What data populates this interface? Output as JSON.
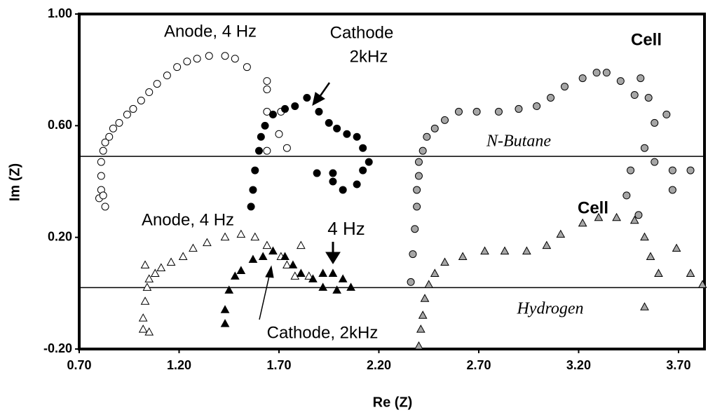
{
  "chart_data": {
    "type": "scatter",
    "x_label": "Re (Z)",
    "y_label": "Im (Z)",
    "xlim": [
      0.7,
      3.83
    ],
    "ylim": [
      -0.2,
      1.0
    ],
    "xticks": [
      {
        "value": 0.7,
        "label": "0.70"
      },
      {
        "value": 1.2,
        "label": "1.20"
      },
      {
        "value": 1.7,
        "label": "1.70"
      },
      {
        "value": 2.2,
        "label": "2.20"
      },
      {
        "value": 2.7,
        "label": "2.70"
      },
      {
        "value": 3.2,
        "label": "3.20"
      },
      {
        "value": 3.7,
        "label": "3.70"
      }
    ],
    "yticks": [
      {
        "value": -0.2,
        "label": "-0.20"
      },
      {
        "value": 0.2,
        "label": "0.20"
      },
      {
        "value": 0.6,
        "label": "0.60"
      },
      {
        "value": 1.0,
        "label": "1.00"
      }
    ],
    "hlines": [
      0.49,
      0.02
    ],
    "annotations": [
      "Anode, 4 Hz",
      "Cathode",
      "2kHz",
      "Cell",
      "N-Butane",
      "Anode, 4 Hz",
      "Cell",
      "4 Hz",
      "Hydrogen",
      "Cathode, 2kHz"
    ],
    "series": [
      {
        "marker": "circle",
        "color": "#ffffff",
        "x": [
          0.8,
          0.81,
          0.82,
          0.83,
          0.81,
          0.81,
          0.82,
          0.83,
          0.85,
          0.87,
          0.9,
          0.94,
          0.97,
          1.01,
          1.05,
          1.09,
          1.14,
          1.19,
          1.24,
          1.29,
          1.35,
          1.43,
          1.48,
          1.54,
          1.64,
          1.64,
          1.64,
          1.64,
          1.7,
          1.74,
          1.71
        ],
        "values": [
          0.34,
          0.37,
          0.35,
          0.31,
          0.42,
          0.47,
          0.51,
          0.54,
          0.56,
          0.59,
          0.61,
          0.64,
          0.66,
          0.69,
          0.72,
          0.75,
          0.78,
          0.81,
          0.83,
          0.84,
          0.85,
          0.85,
          0.84,
          0.81,
          0.73,
          0.76,
          0.65,
          0.51,
          0.57,
          0.52,
          0.65
        ]
      },
      {
        "marker": "circle",
        "color": "#000000",
        "x": [
          1.56,
          1.57,
          1.58,
          1.6,
          1.61,
          1.63,
          1.67,
          1.73,
          1.78,
          1.84,
          1.9,
          1.95,
          1.99,
          2.04,
          2.09,
          2.12,
          2.15,
          2.12,
          2.09,
          2.02,
          1.97,
          1.89,
          1.97
        ],
        "values": [
          0.31,
          0.37,
          0.44,
          0.51,
          0.56,
          0.6,
          0.64,
          0.66,
          0.67,
          0.7,
          0.65,
          0.61,
          0.59,
          0.57,
          0.56,
          0.52,
          0.47,
          0.44,
          0.39,
          0.37,
          0.43,
          0.43,
          0.4
        ]
      },
      {
        "marker": "circle",
        "color": "#a6a6a6",
        "x": [
          2.36,
          2.37,
          2.38,
          2.39,
          2.39,
          2.4,
          2.4,
          2.42,
          2.44,
          2.48,
          2.53,
          2.6,
          2.69,
          2.8,
          2.9,
          2.99,
          3.06,
          3.13,
          3.22,
          3.29,
          3.34,
          3.41,
          3.48,
          3.51,
          3.55,
          3.58,
          3.53,
          3.58,
          3.67,
          3.64,
          3.67,
          3.76,
          3.46,
          3.44,
          3.5
        ],
        "values": [
          0.04,
          0.14,
          0.23,
          0.31,
          0.37,
          0.42,
          0.47,
          0.51,
          0.56,
          0.59,
          0.62,
          0.65,
          0.65,
          0.65,
          0.66,
          0.67,
          0.7,
          0.74,
          0.77,
          0.79,
          0.79,
          0.76,
          0.71,
          0.77,
          0.7,
          0.61,
          0.52,
          0.47,
          0.44,
          0.64,
          0.37,
          0.44,
          0.44,
          0.35,
          0.28
        ]
      },
      {
        "marker": "triangle",
        "color": "#ffffff",
        "x": [
          1.02,
          1.02,
          1.03,
          1.04,
          1.05,
          1.08,
          1.11,
          1.16,
          1.22,
          1.27,
          1.34,
          1.43,
          1.51,
          1.58,
          1.64,
          1.71,
          1.74,
          1.78,
          1.81,
          1.85,
          1.05,
          1.03
        ],
        "values": [
          -0.13,
          -0.09,
          -0.03,
          0.02,
          0.05,
          0.07,
          0.09,
          0.11,
          0.13,
          0.16,
          0.18,
          0.2,
          0.21,
          0.2,
          0.17,
          0.13,
          0.1,
          0.06,
          0.17,
          0.06,
          -0.14,
          0.1
        ]
      },
      {
        "marker": "triangle",
        "color": "#000000",
        "x": [
          1.43,
          1.43,
          1.45,
          1.48,
          1.51,
          1.57,
          1.62,
          1.67,
          1.73,
          1.77,
          1.81,
          1.87,
          1.92,
          1.97,
          2.02,
          2.06,
          1.99,
          1.92
        ],
        "values": [
          -0.11,
          -0.06,
          0.01,
          0.06,
          0.08,
          0.12,
          0.13,
          0.15,
          0.13,
          0.1,
          0.07,
          0.05,
          0.07,
          0.07,
          0.05,
          0.02,
          0.01,
          0.02
        ]
      },
      {
        "marker": "triangle",
        "color": "#a6a6a6",
        "x": [
          2.4,
          2.41,
          2.42,
          2.43,
          2.45,
          2.48,
          2.53,
          2.62,
          2.73,
          2.83,
          2.94,
          3.04,
          3.11,
          3.22,
          3.3,
          3.39,
          3.48,
          3.53,
          3.56,
          3.6,
          3.69,
          3.76,
          3.82,
          3.53
        ],
        "values": [
          -0.19,
          -0.13,
          -0.08,
          -0.02,
          0.03,
          0.07,
          0.11,
          0.13,
          0.15,
          0.15,
          0.15,
          0.17,
          0.21,
          0.25,
          0.27,
          0.27,
          0.26,
          0.2,
          0.13,
          0.07,
          0.16,
          0.07,
          0.03,
          -0.05
        ]
      }
    ]
  }
}
